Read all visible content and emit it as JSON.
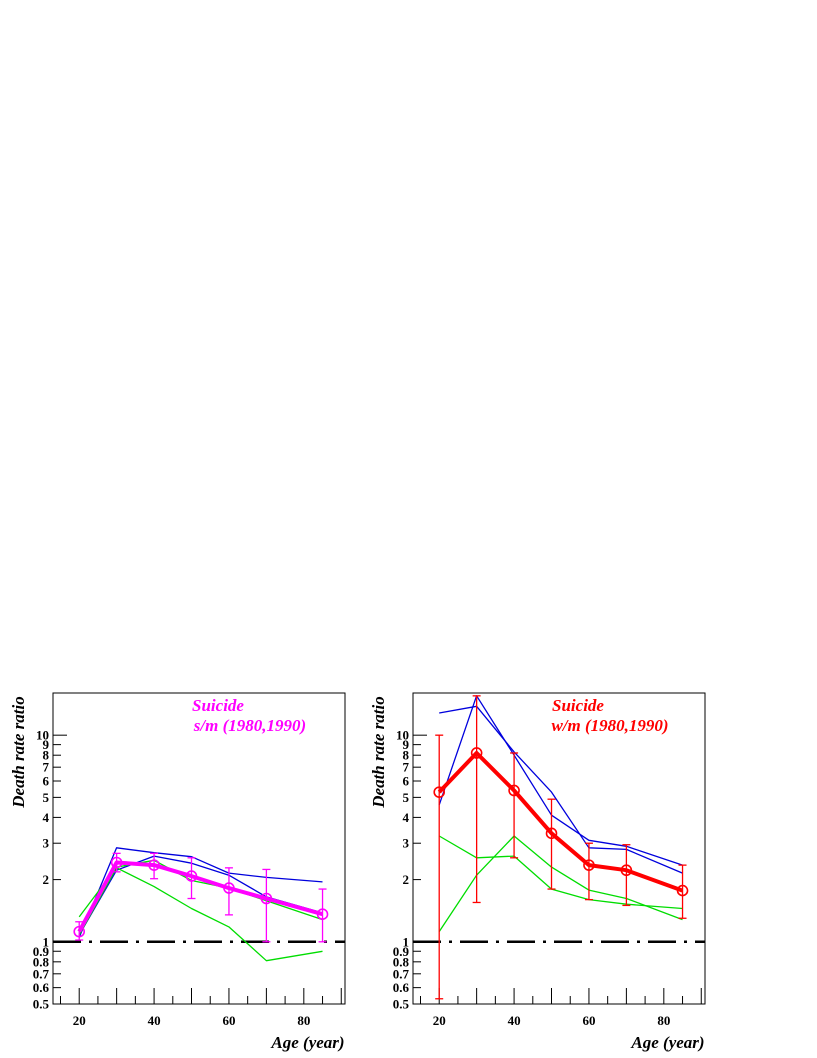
{
  "chart_data": [
    {
      "type": "line",
      "title": "Suicide",
      "subtitle": "s/m (1980,1990)",
      "title_color": "#ff00ff",
      "xlabel": "Age (year)",
      "ylabel": "Death rate ratio",
      "y_scale": "log",
      "xlim": [
        13,
        91
      ],
      "ylim": [
        0.5,
        16
      ],
      "x_ticks": [
        20,
        40,
        60,
        80
      ],
      "y_tick_labels": [
        "0.5",
        "0.6",
        "0.7",
        "0.8",
        "0.9",
        "1",
        "2",
        "3",
        "4",
        "5",
        "6",
        "7",
        "8",
        "9",
        "10"
      ],
      "reference_line": 1,
      "series": [
        {
          "role": "main",
          "color": "#ff00ff",
          "x": [
            20,
            30,
            40,
            50,
            60,
            70,
            85
          ],
          "y": [
            1.12,
            2.42,
            2.35,
            2.08,
            1.82,
            1.62,
            1.36
          ],
          "err_low": [
            1.02,
            2.18,
            2.02,
            1.62,
            1.35,
            1.0,
            1.0
          ],
          "err_high": [
            1.25,
            2.68,
            2.68,
            2.55,
            2.28,
            2.24,
            1.8
          ]
        },
        {
          "role": "upper",
          "color": "#0000dd",
          "x": [
            20,
            30,
            40,
            50,
            60,
            70,
            85
          ],
          "y": [
            1.05,
            2.85,
            2.7,
            2.58,
            2.15,
            2.05,
            1.95
          ]
        },
        {
          "role": "upper",
          "color": "#0000dd",
          "x": [
            20,
            30,
            40,
            50,
            60,
            70,
            85
          ],
          "y": [
            1.08,
            2.22,
            2.6,
            2.4,
            2.1,
            1.65,
            1.38
          ]
        },
        {
          "role": "lower",
          "color": "#00dd00",
          "x": [
            20,
            30,
            40,
            50,
            60,
            70,
            85
          ],
          "y": [
            1.32,
            2.3,
            2.48,
            1.98,
            1.82,
            1.58,
            1.28
          ]
        },
        {
          "role": "lower",
          "color": "#00dd00",
          "x": [
            20,
            30,
            40,
            50,
            60,
            70,
            85
          ],
          "y": [
            1.08,
            2.28,
            1.85,
            1.45,
            1.18,
            0.81,
            0.9
          ]
        }
      ]
    },
    {
      "type": "line",
      "title": "Suicide",
      "subtitle": "w/m (1980,1990)",
      "title_color": "#ff0000",
      "xlabel": "Age (year)",
      "ylabel": "Death rate ratio",
      "y_scale": "log",
      "xlim": [
        13,
        91
      ],
      "ylim": [
        0.5,
        16
      ],
      "x_ticks": [
        20,
        40,
        60,
        80
      ],
      "y_tick_labels": [
        "0.5",
        "0.6",
        "0.7",
        "0.8",
        "0.9",
        "1",
        "2",
        "3",
        "4",
        "5",
        "6",
        "7",
        "8",
        "9",
        "10"
      ],
      "reference_line": 1,
      "series": [
        {
          "role": "main",
          "color": "#ff0000",
          "x": [
            20,
            30,
            40,
            50,
            60,
            70,
            85
          ],
          "y": [
            5.3,
            8.2,
            5.4,
            3.35,
            2.35,
            2.22,
            1.77
          ],
          "err_low": [
            0.53,
            1.55,
            2.55,
            1.8,
            1.6,
            1.5,
            1.3
          ],
          "err_high": [
            10.0,
            15.5,
            8.2,
            4.9,
            3.0,
            2.95,
            2.35
          ]
        },
        {
          "role": "upper",
          "color": "#0000dd",
          "x": [
            20,
            30,
            40,
            50,
            60,
            70,
            85
          ],
          "y": [
            12.8,
            13.8,
            8.3,
            5.3,
            2.85,
            2.8,
            2.15
          ]
        },
        {
          "role": "upper",
          "color": "#0000dd",
          "x": [
            20,
            30,
            40,
            50,
            60,
            70,
            85
          ],
          "y": [
            4.6,
            15.5,
            8.0,
            4.1,
            3.1,
            2.9,
            2.35
          ]
        },
        {
          "role": "lower",
          "color": "#00dd00",
          "x": [
            20,
            30,
            40,
            50,
            60,
            70,
            85
          ],
          "y": [
            3.25,
            2.55,
            2.6,
            1.8,
            1.6,
            1.52,
            1.45
          ]
        },
        {
          "role": "lower",
          "color": "#00dd00",
          "x": [
            20,
            30,
            40,
            50,
            60,
            70,
            85
          ],
          "y": [
            1.12,
            2.1,
            3.25,
            2.3,
            1.78,
            1.62,
            1.28
          ]
        }
      ]
    }
  ]
}
